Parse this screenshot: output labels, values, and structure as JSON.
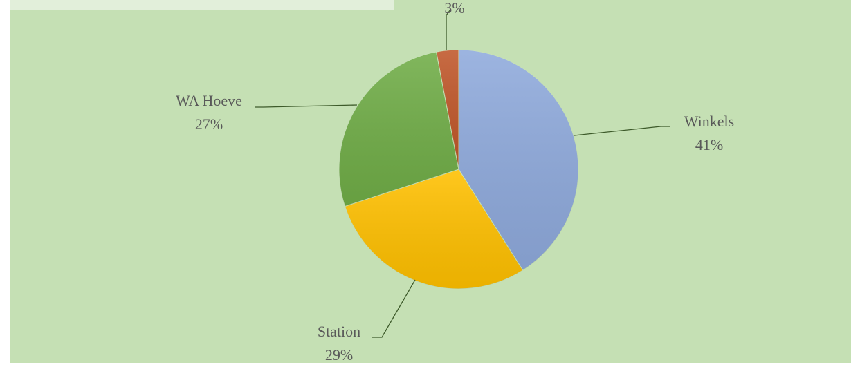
{
  "chart_data": {
    "type": "pie",
    "categories": [
      "Winkels",
      "Station",
      "WA Hoeve",
      null
    ],
    "values": [
      41,
      29,
      27,
      3
    ],
    "value_labels": [
      "41%",
      "29%",
      "27%",
      "3%"
    ],
    "colors": [
      "#8faadc",
      "#ffc000",
      "#70ad47",
      "#c0572a"
    ]
  }
}
